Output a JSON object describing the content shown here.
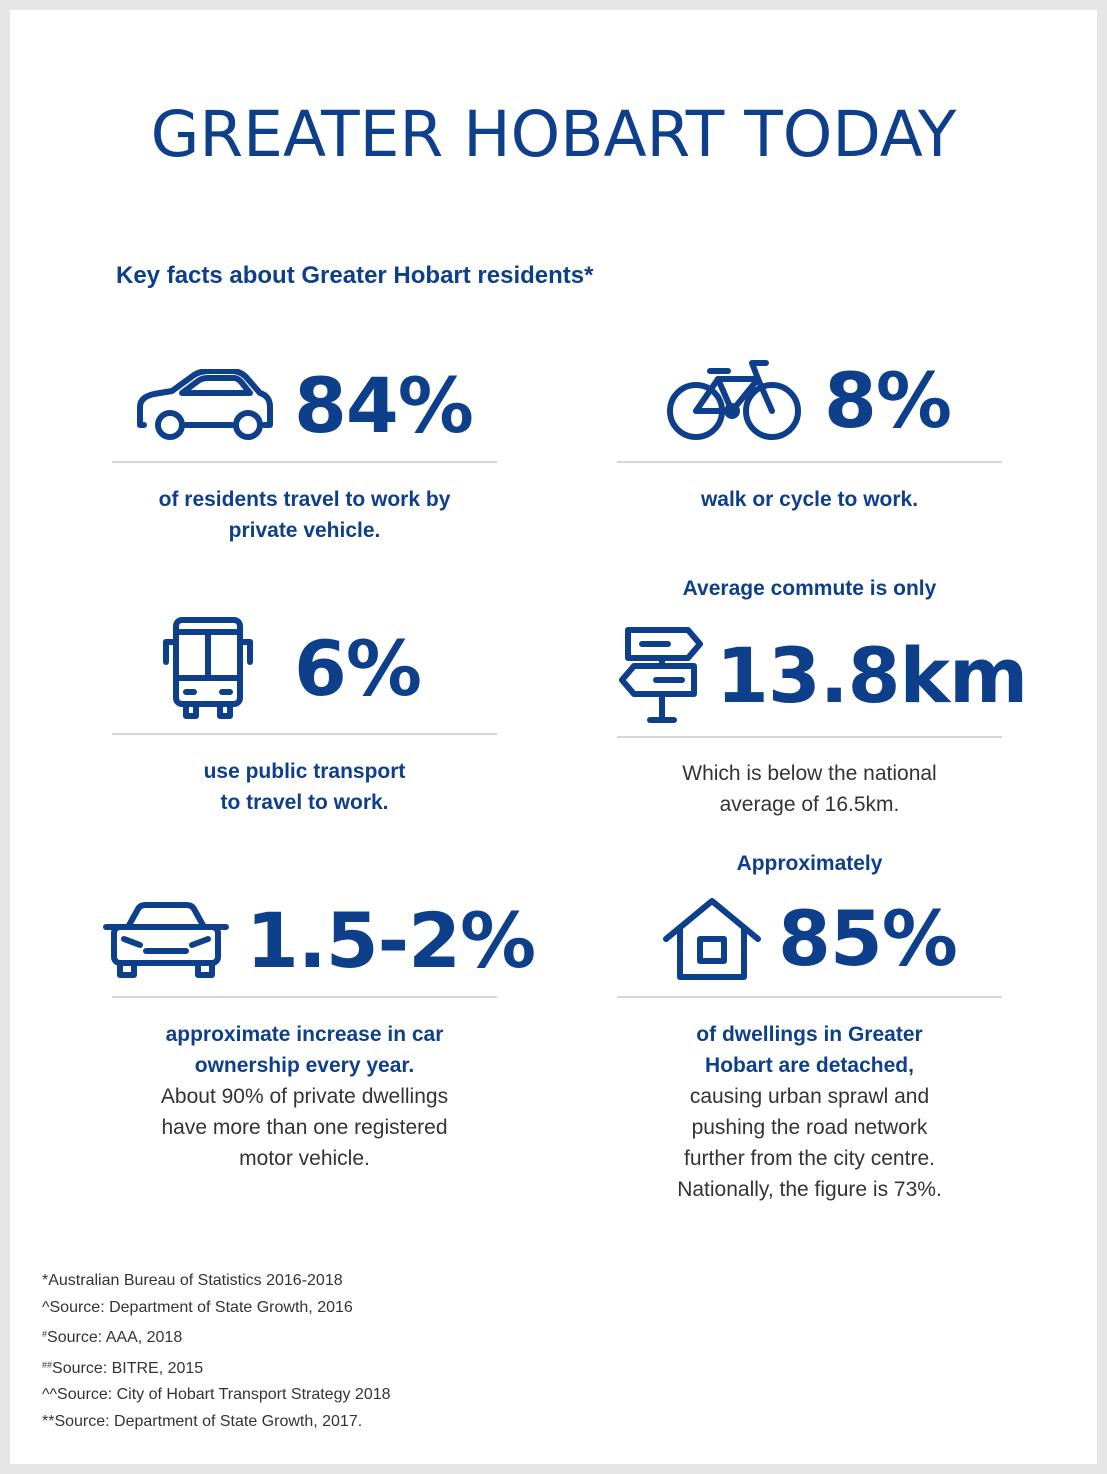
{
  "header": {
    "title": "GREATER HOBART TODAY",
    "subtitle": "Key facts about Greater Hobart residents*"
  },
  "stats": {
    "private_vehicle": {
      "value": "84%",
      "desc_bold": "of residents travel to work by private vehicle."
    },
    "walk_cycle": {
      "value": "8%",
      "desc_bold": "walk or cycle to work."
    },
    "public_transport": {
      "value": "6%",
      "desc_line1": "use public transport",
      "desc_line2": "to travel to work."
    },
    "commute": {
      "lead": "Average commute is only",
      "value": "13.8km",
      "desc_line1": "Which is below the national",
      "desc_line2": "average of 16.5km."
    },
    "car_ownership": {
      "value": "1.5-2%",
      "desc_line1": "approximate increase in car",
      "desc_line2": "ownership every year.",
      "note_line1": "About 90% of private dwellings",
      "note_line2": "have more than one registered",
      "note_line3": "motor vehicle."
    },
    "dwellings": {
      "lead": "Approximately",
      "value": "85%",
      "desc_line1": "of dwellings in Greater",
      "desc_line2": "Hobart are detached,",
      "note_line1": "causing urban sprawl and",
      "note_line2": "pushing the road network",
      "note_line3": "further from the city centre.",
      "note_line4": "Nationally, the figure is 73%."
    }
  },
  "icons": {
    "private_vehicle": "car-side-icon",
    "walk_cycle": "bicycle-icon",
    "public_transport": "bus-icon",
    "commute": "signpost-icon",
    "car_ownership": "car-front-icon",
    "dwellings": "house-icon"
  },
  "sources": {
    "s1": "*Australian Bureau of Statistics 2016-2018",
    "s2": "^Source: Department of State Growth, 2016",
    "s3_mark": "#",
    "s3_text": "Source: AAA, 2018",
    "s4_mark": "##",
    "s4_text": "Source: BITRE, 2015",
    "s5": "^^Source: City of Hobart Transport Strategy 2018",
    "s6": "**Source: Department of State Growth, 2017."
  },
  "colors": {
    "brand_blue": "#0e3f8a",
    "body_text": "#333333",
    "rule": "#d6d6d6",
    "background": "#e6e6e6"
  }
}
